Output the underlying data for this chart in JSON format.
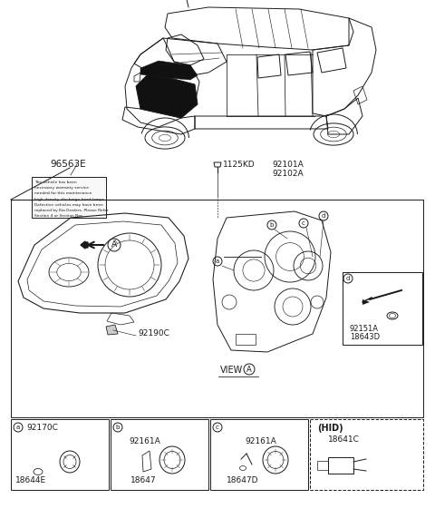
{
  "bg_color": "#ffffff",
  "line_color": "#1a1a1a",
  "light_line": "#555555",
  "part_numbers": {
    "main_label": "96563E",
    "bolt": "1125KD",
    "assy1": "92101A",
    "assy2": "92102A",
    "cover": "92190C",
    "a1": "92170C",
    "a2": "18644E",
    "b1": "92161A",
    "b2": "18647",
    "c1": "92161A",
    "c2": "18647D",
    "hid": "(HID)",
    "hid1": "18641C",
    "d1": "92151A",
    "d2": "18643D"
  },
  "label_lines": [
    "The vehicle has been",
    "necessary warranty service",
    "needed for this maintenance",
    "high-density discharge head lamps",
    "Defective vehicles may have been",
    "replaced by Kia Dealers. Please Refer",
    "Section 4 or Section Nos."
  ]
}
